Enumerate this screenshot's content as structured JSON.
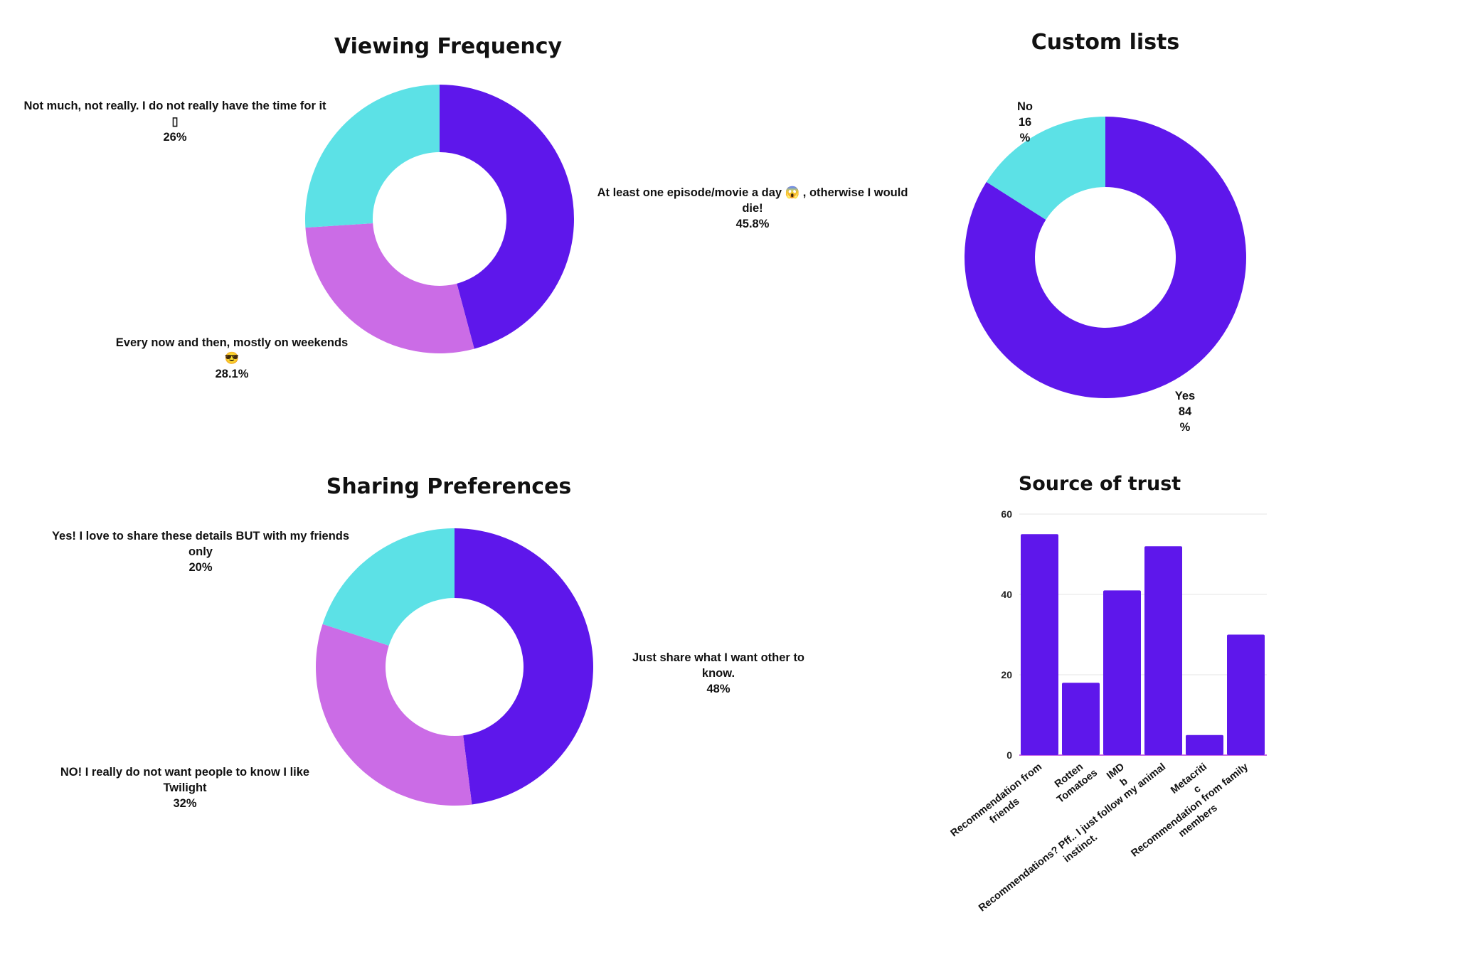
{
  "colors": {
    "purple": "#5E17EB",
    "cyan": "#5CE1E6",
    "violet": "#CB6CE6",
    "grid": "#e6e6e6"
  },
  "chart_data": [
    {
      "type": "pie",
      "donut": true,
      "title": "Viewing Frequency",
      "slices": [
        {
          "label_lines": [
            "At least one episode/movie a day 😱 , otherwise I would",
            "die!"
          ],
          "value_label": "45.8%",
          "value": 45.8,
          "color": "#5E17EB"
        },
        {
          "label_lines": [
            "Every now and then, mostly on weekends",
            "😎"
          ],
          "value_label": "28.1%",
          "value": 28.1,
          "color": "#CB6CE6"
        },
        {
          "label_lines": [
            "Not much, not really. I do not really have the time for it",
            "▯"
          ],
          "value_label": "26%",
          "value": 26,
          "color": "#5CE1E6"
        }
      ]
    },
    {
      "type": "pie",
      "donut": true,
      "title": "Custom lists",
      "slices": [
        {
          "label_lines": [
            "Yes",
            "84"
          ],
          "value_label": "%",
          "value": 84,
          "color": "#5E17EB"
        },
        {
          "label_lines": [
            "No",
            "16"
          ],
          "value_label": "%",
          "value": 16,
          "color": "#5CE1E6"
        }
      ]
    },
    {
      "type": "pie",
      "donut": true,
      "title": "Sharing Preferences",
      "slices": [
        {
          "label_lines": [
            "Just share what I want other to",
            "know."
          ],
          "value_label": "48%",
          "value": 48,
          "color": "#5E17EB"
        },
        {
          "label_lines": [
            "NO! I really do not want people to know I like",
            "Twilight"
          ],
          "value_label": "32%",
          "value": 32,
          "color": "#CB6CE6"
        },
        {
          "label_lines": [
            "Yes! I love to share these details BUT with my friends",
            "only"
          ],
          "value_label": "20%",
          "value": 20,
          "color": "#5CE1E6"
        }
      ]
    },
    {
      "type": "bar",
      "title": "Source of trust",
      "categories": [
        [
          "Recommendation from",
          "friends"
        ],
        [
          "Rotten",
          "Tomatoes"
        ],
        [
          "IMD",
          "b"
        ],
        [
          "Recommendations? Pff.. I just follow my animal",
          "instinct."
        ],
        [
          "Metacriti",
          "c"
        ],
        [
          "Recommendation from family",
          "members"
        ]
      ],
      "values": [
        55,
        18,
        41,
        52,
        5,
        30
      ],
      "yticks": [
        "0",
        "20",
        "40",
        "60"
      ],
      "ylim": [
        0,
        60
      ],
      "grid": true,
      "color": "#5E17EB"
    }
  ]
}
